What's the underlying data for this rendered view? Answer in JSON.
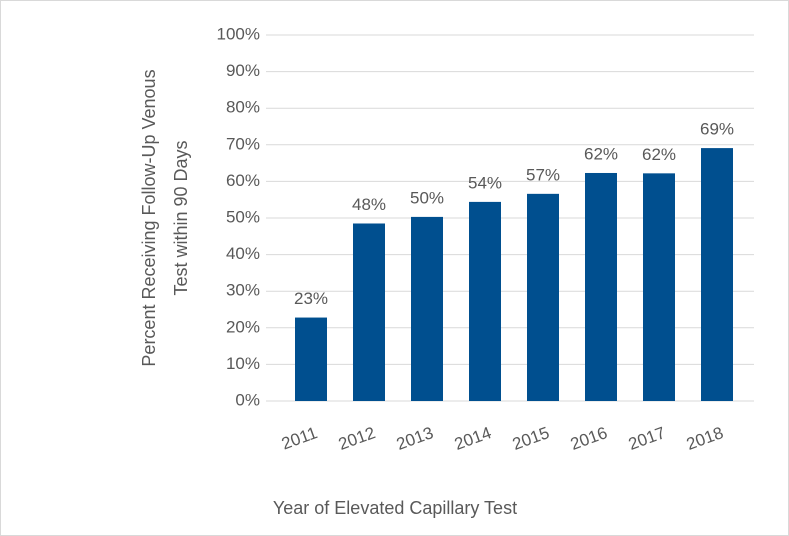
{
  "chart_data": {
    "type": "bar",
    "ylabel": [
      "Percent Receiving Follow-Up Venous",
      "Test within 90 Days"
    ],
    "xlabel": "Year of Elevated Capillary Test",
    "categories": [
      "2011",
      "2012",
      "2013",
      "2014",
      "2015",
      "2016",
      "2017",
      "2018"
    ],
    "values": [
      22.8,
      48.5,
      50.3,
      54.4,
      56.6,
      62.3,
      62.2,
      69.1
    ],
    "value_labels": [
      "23%",
      "48%",
      "50%",
      "54%",
      "57%",
      "62%",
      "62%",
      "69%"
    ],
    "color": "#004f8f",
    "ylim": [
      0,
      100
    ],
    "yticks": [
      {
        "value": 0,
        "label": "0%"
      },
      {
        "value": 10,
        "label": "10%"
      },
      {
        "value": 20,
        "label": "20%"
      },
      {
        "value": 30,
        "label": "30%"
      },
      {
        "value": 40,
        "label": "40%"
      },
      {
        "value": 50,
        "label": "50%"
      },
      {
        "value": 60,
        "label": "60%"
      },
      {
        "value": 70,
        "label": "70%"
      },
      {
        "value": 80,
        "label": "80%"
      },
      {
        "value": 90,
        "label": "90%"
      },
      {
        "value": 100,
        "label": "100%"
      }
    ],
    "grid": true
  }
}
